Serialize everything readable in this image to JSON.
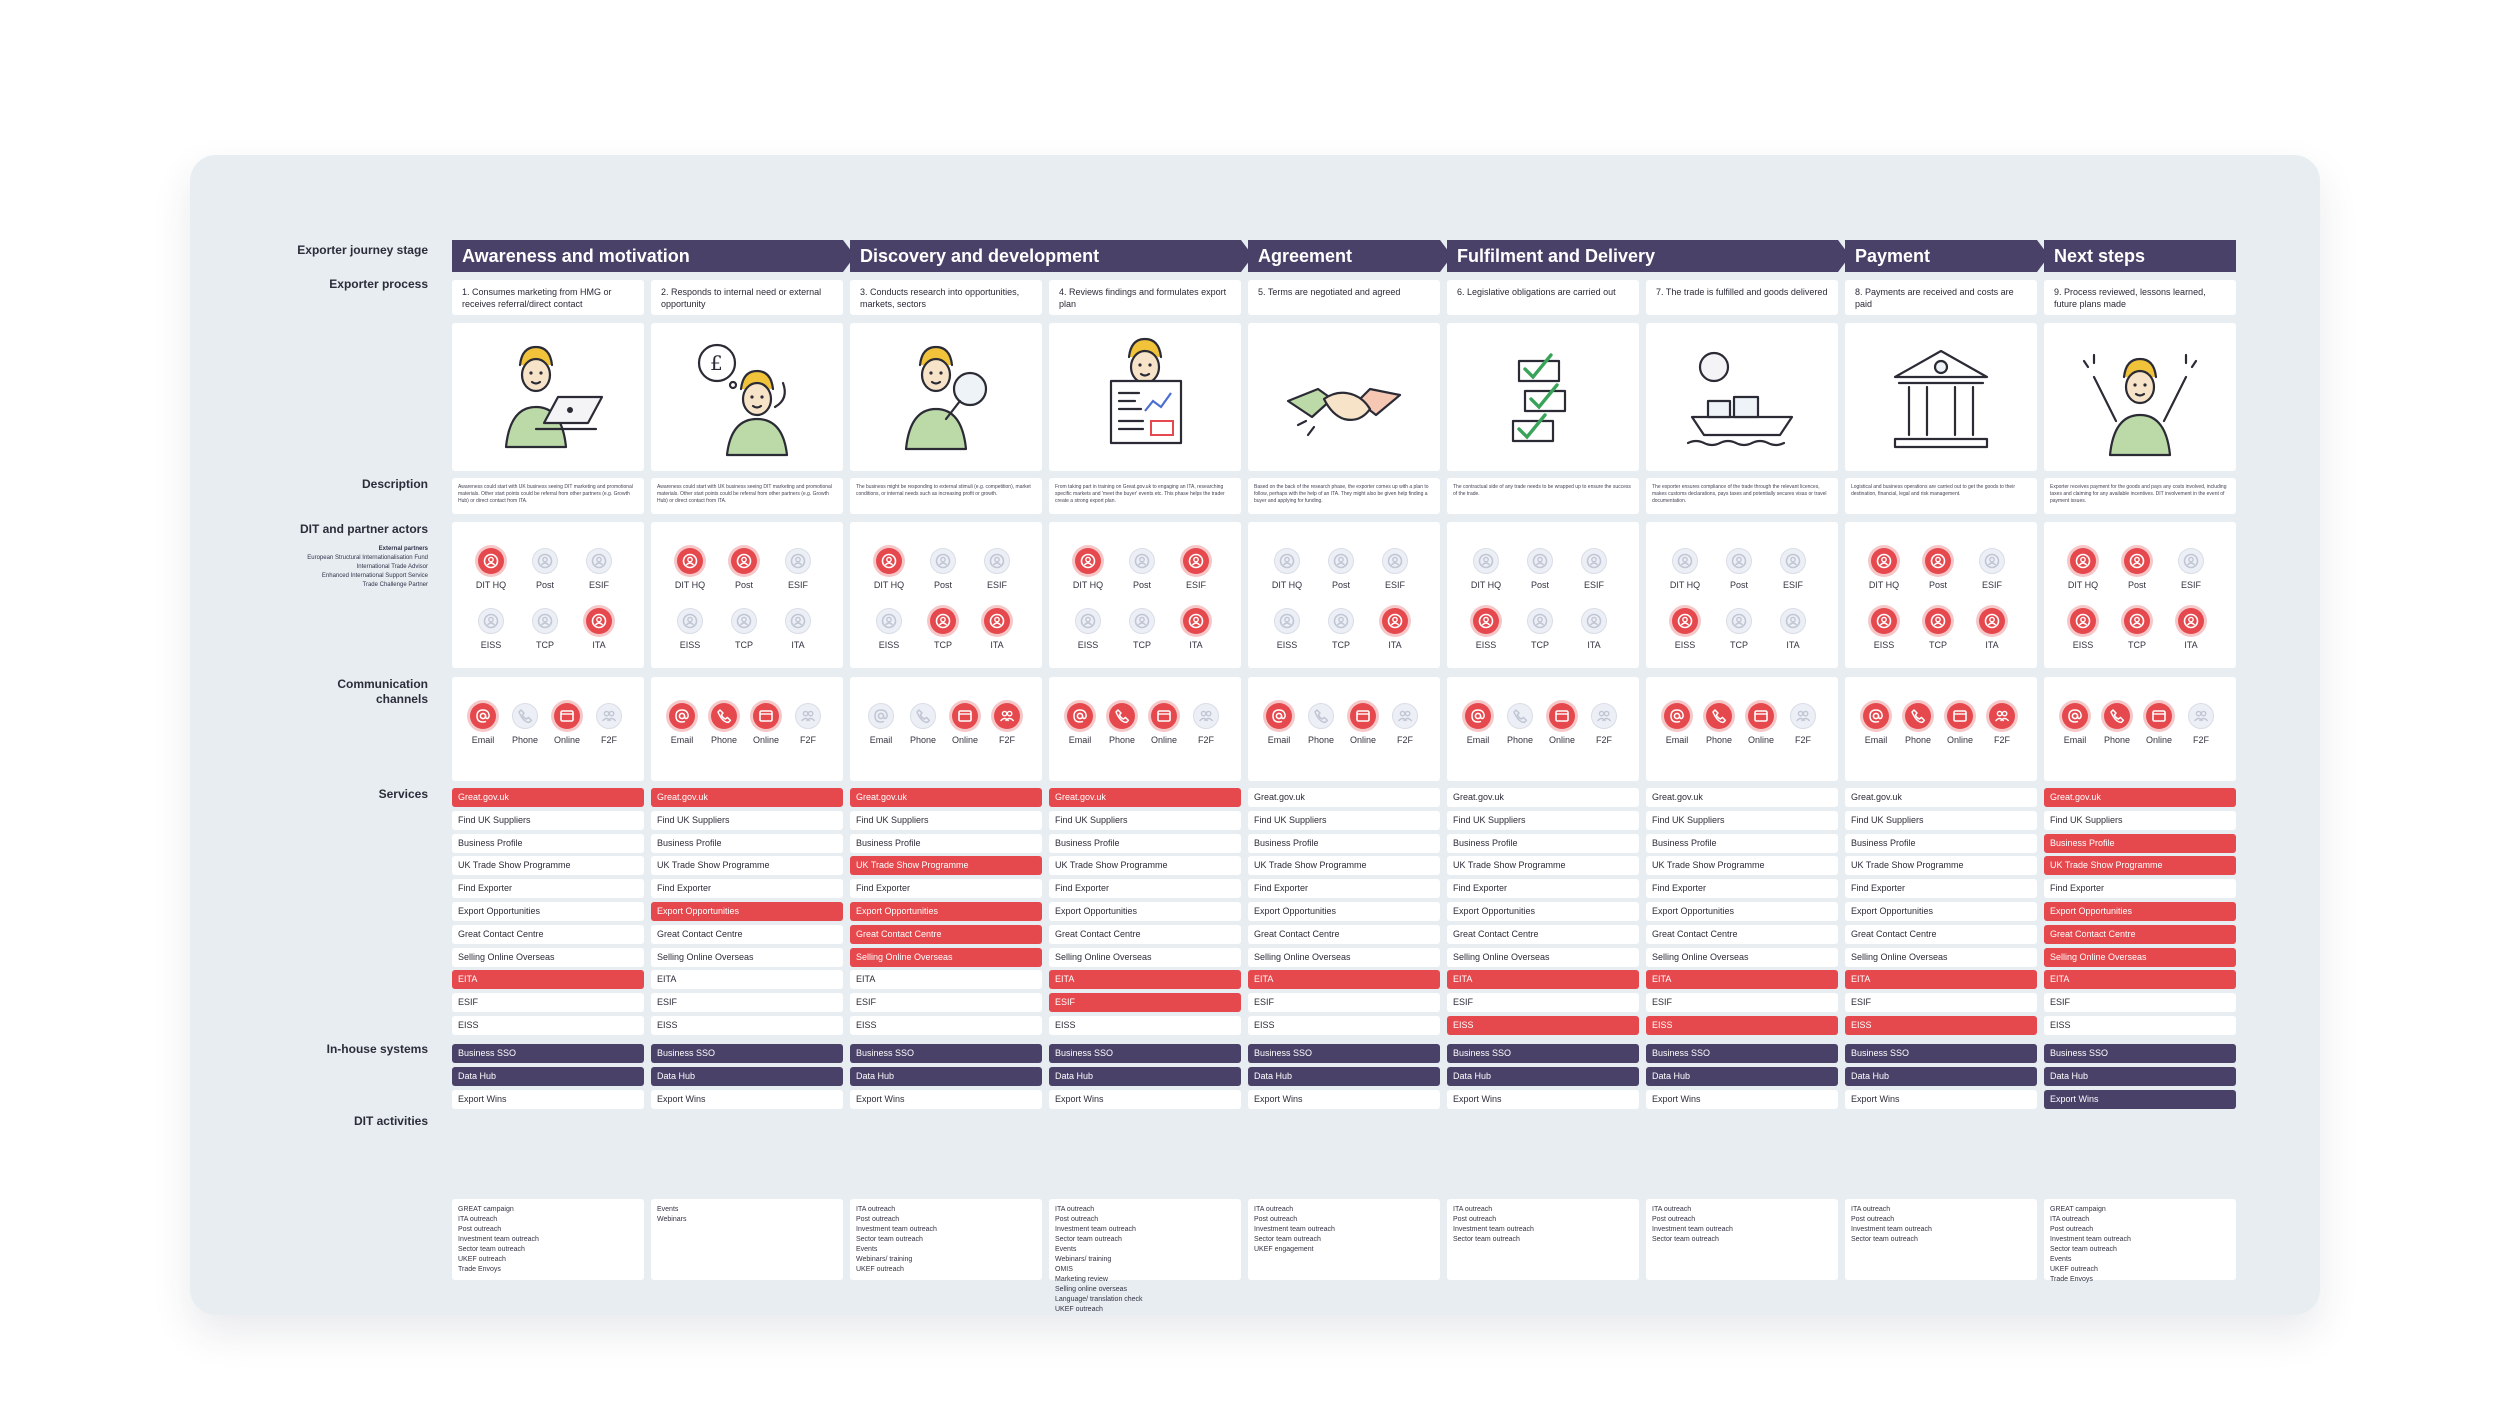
{
  "row_labels": {
    "stage": "Exporter journey stage",
    "process": "Exporter process",
    "description": "Description",
    "actors": "DIT and partner actors",
    "external_partners": {
      "title": "External partners",
      "lines": [
        "European Structural Internationalisation Fund",
        "International Trade Advisor",
        "Enhanced International Support Service",
        "Trade Challenge Partner"
      ]
    },
    "communication_1": "Communication",
    "communication_2": "channels",
    "services": "Services",
    "inhouse": "In-house systems",
    "activities": "DIT activities"
  },
  "stages": [
    {
      "label": "Awareness and motivation"
    },
    {
      "label": "Discovery and development"
    },
    {
      "label": "Agreement"
    },
    {
      "label": "Fulfilment and Delivery"
    },
    {
      "label": "Payment"
    },
    {
      "label": "Next steps"
    }
  ],
  "colors": {
    "accent_red": "#e5484d",
    "accent_purple": "#4a4168",
    "board": "#e7edf1"
  },
  "actor_names": [
    "DIT HQ",
    "Post",
    "ESIF",
    "EISS",
    "TCP",
    "ITA"
  ],
  "channel_names": [
    "Email",
    "Phone",
    "Online",
    "F2F"
  ],
  "channel_icons": [
    "at-icon",
    "phone-icon",
    "online-icon",
    "people-icon"
  ],
  "service_names": [
    "Great.gov.uk",
    "Find UK Suppliers",
    "Business Profile",
    "UK Trade Show Programme",
    "Find Exporter",
    "Export Opportunities",
    "Great Contact Centre",
    "Selling Online Overseas",
    "EITA",
    "ESIF",
    "EISS"
  ],
  "system_names": [
    "Business SSO",
    "Data Hub",
    "Export Wins"
  ],
  "columns": [
    {
      "process": "1. Consumes marketing from HMG or receives referral/direct contact",
      "illustration": "person-laptop",
      "description": "Awareness could start with UK business seeing DIT marketing and promotional materials. Other start points could be referral from other partners (e.g. Growth Hub) or direct contact from ITA.",
      "actors": [
        1,
        0,
        0,
        0,
        0,
        1
      ],
      "channels": [
        1,
        0,
        1,
        0
      ],
      "services": [
        1,
        0,
        0,
        0,
        0,
        0,
        0,
        0,
        1,
        0,
        0
      ],
      "systems": [
        1,
        1,
        0
      ],
      "activities": [
        "GREAT campaign",
        "ITA outreach",
        "Post outreach",
        "Investment team outreach",
        "Sector team outreach",
        "UKEF outreach",
        "Trade Envoys"
      ]
    },
    {
      "process": "2. Responds to internal need or external opportunity",
      "illustration": "person-thinking",
      "description": "Awareness could start with UK business seeing DIT marketing and promotional materials. Other start points could be referral from other partners (e.g. Growth Hub) or direct contact from ITA.",
      "actors": [
        1,
        1,
        0,
        0,
        0,
        0
      ],
      "channels": [
        1,
        1,
        1,
        0
      ],
      "services": [
        1,
        0,
        0,
        0,
        0,
        1,
        0,
        0,
        0,
        0,
        0
      ],
      "systems": [
        1,
        1,
        0
      ],
      "activities": [
        "Events",
        "Webinars"
      ]
    },
    {
      "process": "3. Conducts research into opportunities, markets, sectors",
      "illustration": "person-magnifier",
      "description": "The business might be responding to external stimuli (e.g. competition), market conditions, or internal needs such as increasing profit or growth.",
      "actors": [
        1,
        0,
        0,
        0,
        1,
        1
      ],
      "channels": [
        0,
        0,
        1,
        1
      ],
      "services": [
        1,
        0,
        0,
        1,
        0,
        1,
        1,
        1,
        0,
        0,
        0
      ],
      "systems": [
        1,
        1,
        0
      ],
      "activities": [
        "ITA outreach",
        "Post outreach",
        "Investment team outreach",
        "Sector team outreach",
        "Events",
        "Webinars/ training",
        "UKEF outreach"
      ]
    },
    {
      "process": "4. Reviews findings and formulates export plan",
      "illustration": "person-newspaper",
      "description": "From taking part in training on Great.gov.uk to engaging an ITA, researching specific markets and 'meet the buyer' events etc. This phase helps the trader create a strong export plan.",
      "actors": [
        1,
        0,
        1,
        0,
        0,
        1
      ],
      "channels": [
        1,
        1,
        1,
        0
      ],
      "services": [
        1,
        0,
        0,
        0,
        0,
        0,
        0,
        0,
        1,
        1,
        0
      ],
      "systems": [
        1,
        1,
        0
      ],
      "activities": [
        "ITA outreach",
        "Post outreach",
        "Investment team outreach",
        "Sector team outreach",
        "Events",
        "Webinars/ training",
        "OMIS",
        "Marketing review",
        "Selling online overseas",
        "Language/ translation check",
        "UKEF outreach"
      ]
    },
    {
      "process": "5. Terms are negotiated and agreed",
      "illustration": "handshake",
      "description": "Based on the back of the research phase, the exporter comes up with a plan to follow, perhaps with the help of an ITA. They might also be given help finding a buyer and applying for funding.",
      "actors": [
        0,
        0,
        0,
        0,
        0,
        1
      ],
      "channels": [
        1,
        0,
        1,
        0
      ],
      "services": [
        0,
        0,
        0,
        0,
        0,
        0,
        0,
        0,
        1,
        0,
        0
      ],
      "systems": [
        1,
        1,
        0
      ],
      "activities": [
        "ITA outreach",
        "Post outreach",
        "Investment team outreach",
        "Sector team outreach",
        "UKEF engagement"
      ]
    },
    {
      "process": "6. Legislative obligations are carried out",
      "illustration": "checklist",
      "description": "The contractual side of any trade needs to be wrapped up to ensure the success of the trade.",
      "actors": [
        0,
        0,
        0,
        1,
        0,
        0
      ],
      "channels": [
        1,
        0,
        1,
        0
      ],
      "services": [
        0,
        0,
        0,
        0,
        0,
        0,
        0,
        0,
        1,
        0,
        1
      ],
      "systems": [
        1,
        1,
        0
      ],
      "activities": [
        "ITA outreach",
        "Post outreach",
        "Investment team outreach",
        "Sector team outreach"
      ]
    },
    {
      "process": "7. The trade is fulfilled and goods delivered",
      "illustration": "ship",
      "description": "The exporter ensures compliance of the trade through the relevant licences, makes customs declarations, pays taxes and potentially secures visas or travel documentation.",
      "actors": [
        0,
        0,
        0,
        1,
        0,
        0
      ],
      "channels": [
        1,
        1,
        1,
        0
      ],
      "services": [
        0,
        0,
        0,
        0,
        0,
        0,
        0,
        0,
        1,
        0,
        1
      ],
      "systems": [
        1,
        1,
        0
      ],
      "activities": [
        "ITA outreach",
        "Post outreach",
        "Investment team outreach",
        "Sector team outreach"
      ]
    },
    {
      "process": "8. Payments are received and costs are paid",
      "illustration": "bank",
      "description": "Logistical and business operations are carried out to get the goods to their destination, financial, legal and risk management.",
      "actors": [
        1,
        1,
        0,
        1,
        1,
        1
      ],
      "channels": [
        1,
        1,
        1,
        1
      ],
      "services": [
        0,
        0,
        0,
        0,
        0,
        0,
        0,
        0,
        1,
        0,
        1
      ],
      "systems": [
        1,
        1,
        0
      ],
      "activities": [
        "ITA outreach",
        "Post outreach",
        "Investment team outreach",
        "Sector team outreach"
      ]
    },
    {
      "process": "9. Process reviewed, lessons learned, future plans made",
      "illustration": "celebrating",
      "description": "Exporter receives payment for the goods and pays any costs involved, including taxes and claiming for any available incentives. DIT involvement in the event of payment issues.",
      "actors": [
        1,
        1,
        0,
        1,
        1,
        1
      ],
      "channels": [
        1,
        1,
        1,
        0
      ],
      "services": [
        1,
        0,
        1,
        1,
        0,
        1,
        1,
        1,
        1,
        0,
        0
      ],
      "systems": [
        1,
        1,
        1
      ],
      "activities": [
        "GREAT campaign",
        "ITA outreach",
        "Post outreach",
        "Investment team outreach",
        "Sector team outreach",
        "Events",
        "UKEF outreach",
        "Trade Envoys"
      ]
    }
  ]
}
